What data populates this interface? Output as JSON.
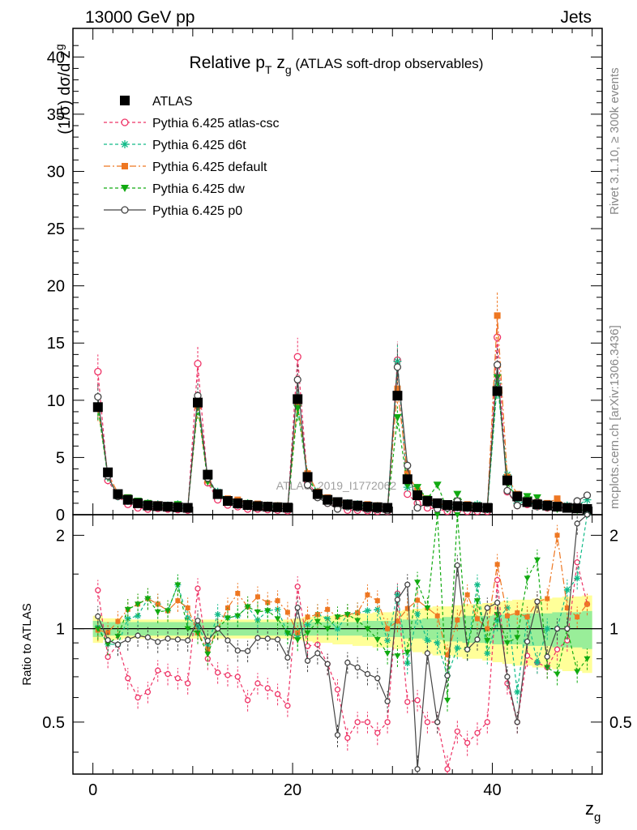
{
  "header": {
    "left": "13000 GeV pp",
    "right": "Jets",
    "title_main": "Relative p",
    "title_sub_T": "T",
    "title_z": " z",
    "title_sub_g": "g",
    "title_rest": " (ATLAS soft-drop observables)",
    "watermark": "ATLAS_2019_I1772062",
    "side_top": "Rivet 3.1.10, ≥ 300k events",
    "side_bottom": "mcplots.cern.ch [arXiv:1306.3436]"
  },
  "chart_data": {
    "type": "scatter",
    "xlabel": "z",
    "xlabel_sub": "g",
    "ylabel": "(1/σ) dσ/d z",
    "ylabel_sub": "g",
    "ratio_ylabel": "Ratio to ATLAS",
    "xlim": [
      -2,
      51
    ],
    "ylim": [
      0,
      42.5
    ],
    "ratio_ylim": [
      0.34,
      2.33
    ],
    "x_ticks": [
      0,
      20,
      40
    ],
    "y_ticks": [
      0,
      5,
      10,
      15,
      20,
      25,
      30,
      35,
      40
    ],
    "ratio_ticks": [
      0.5,
      1,
      2
    ],
    "x": [
      0.5,
      1.5,
      2.5,
      3.5,
      4.5,
      5.5,
      6.5,
      7.5,
      8.5,
      9.5,
      10.5,
      11.5,
      12.5,
      13.5,
      14.5,
      15.5,
      16.5,
      17.5,
      18.5,
      19.5,
      20.5,
      21.5,
      22.5,
      23.5,
      24.5,
      25.5,
      26.5,
      27.5,
      28.5,
      29.5,
      30.5,
      31.5,
      32.5,
      33.5,
      34.5,
      35.5,
      36.5,
      37.5,
      38.5,
      39.5,
      40.5,
      41.5,
      42.5,
      43.5,
      44.5,
      45.5,
      46.5,
      47.5,
      48.5,
      49.5
    ],
    "series": [
      {
        "name": "ATLAS",
        "color": "#000000",
        "marker": "square",
        "line": "none",
        "values": [
          9.4,
          3.7,
          1.8,
          1.3,
          1.0,
          0.8,
          0.75,
          0.7,
          0.65,
          0.6,
          9.8,
          3.5,
          1.8,
          1.2,
          1.0,
          0.85,
          0.75,
          0.7,
          0.65,
          0.62,
          10.1,
          3.3,
          1.8,
          1.3,
          1.1,
          0.9,
          0.8,
          0.7,
          0.65,
          0.6,
          10.4,
          3.1,
          1.7,
          1.2,
          1.0,
          0.85,
          0.75,
          0.7,
          0.65,
          0.6,
          10.8,
          3.0,
          1.6,
          1.1,
          0.9,
          0.8,
          0.7,
          0.6,
          0.55,
          0.5
        ]
      },
      {
        "name": "Pythia 6.425 atlas-csc",
        "color": "#ee3366",
        "marker": "circle-open",
        "line": "dashed",
        "values": [
          12.5,
          3.0,
          1.6,
          0.9,
          0.6,
          0.5,
          0.55,
          0.5,
          0.45,
          0.4,
          13.2,
          2.8,
          1.3,
          0.85,
          0.7,
          0.5,
          0.5,
          0.45,
          0.4,
          0.35,
          13.8,
          2.9,
          1.6,
          1.0,
          0.7,
          0.4,
          0.4,
          0.35,
          0.3,
          0.3,
          13.5,
          1.8,
          1.0,
          0.6,
          0.5,
          0.3,
          0.35,
          0.3,
          0.3,
          0.3,
          15.5,
          2.0,
          0.8,
          0.9,
          0.7,
          0.6,
          0.6,
          0.55,
          0.9,
          0.6
        ]
      },
      {
        "name": "Pythia 6.425 d6t",
        "color": "#11bb88",
        "marker": "star",
        "line": "dashed",
        "values": [
          9.5,
          3.3,
          1.6,
          1.4,
          1.1,
          1.0,
          0.9,
          0.8,
          0.9,
          0.65,
          10.0,
          3.1,
          2.0,
          1.3,
          1.1,
          1.0,
          0.8,
          0.8,
          0.75,
          0.6,
          9.6,
          3.4,
          2.0,
          1.4,
          1.1,
          1.0,
          0.9,
          0.8,
          0.75,
          0.55,
          13.4,
          2.4,
          1.9,
          1.1,
          0.9,
          0.6,
          0.65,
          0.6,
          0.9,
          0.5,
          11.5,
          3.5,
          1.0,
          1.2,
          0.7,
          0.8,
          0.7,
          0.8,
          0.8,
          1.3
        ]
      },
      {
        "name": "Pythia 6.425 default",
        "color": "#ee7722",
        "marker": "square-filled",
        "line": "dashdot",
        "values": [
          9.3,
          3.6,
          1.9,
          1.5,
          1.2,
          1.0,
          0.9,
          0.8,
          0.8,
          0.7,
          9.5,
          3.0,
          1.8,
          1.4,
          1.3,
          1.0,
          0.95,
          0.85,
          0.8,
          0.7,
          9.8,
          3.6,
          2.0,
          1.5,
          1.2,
          1.0,
          0.9,
          0.9,
          0.8,
          0.6,
          11.0,
          3.6,
          2.1,
          1.4,
          1.1,
          0.7,
          0.8,
          0.9,
          0.7,
          0.6,
          17.4,
          3.3,
          1.8,
          1.2,
          1.1,
          1.0,
          1.4,
          0.7,
          0.6,
          0.6
        ]
      },
      {
        "name": "Pythia 6.425 dw",
        "color": "#11aa11",
        "marker": "triangle-down",
        "line": "dashed",
        "values": [
          9.4,
          3.3,
          1.7,
          1.5,
          1.2,
          1.0,
          0.85,
          0.8,
          0.9,
          0.6,
          9.5,
          2.9,
          1.8,
          1.3,
          1.1,
          1.0,
          0.85,
          0.8,
          0.7,
          0.6,
          9.3,
          3.2,
          1.9,
          1.3,
          1.2,
          1.0,
          0.85,
          0.7,
          0.6,
          0.5,
          8.5,
          2.6,
          2.4,
          1.4,
          2.6,
          0.5,
          1.8,
          0.6,
          0.8,
          0.55,
          12.0,
          2.7,
          1.5,
          1.6,
          1.5,
          0.6,
          0.5,
          0.6,
          0.4,
          0.4
        ]
      },
      {
        "name": "Pythia 6.425 p0",
        "color": "#444444",
        "marker": "circle-open",
        "line": "solid",
        "values": [
          10.3,
          3.4,
          1.6,
          1.2,
          0.95,
          0.75,
          0.68,
          0.65,
          0.6,
          0.55,
          10.4,
          3.2,
          1.8,
          1.1,
          0.85,
          0.72,
          0.7,
          0.65,
          0.6,
          0.5,
          11.8,
          2.6,
          1.5,
          1.0,
          0.5,
          0.7,
          0.6,
          0.5,
          0.45,
          0.35,
          12.9,
          4.3,
          0.6,
          1.0,
          0.5,
          0.6,
          1.2,
          0.6,
          0.6,
          0.7,
          13.1,
          2.1,
          0.8,
          1.0,
          1.1,
          0.65,
          0.7,
          0.6,
          1.2,
          1.7
        ]
      }
    ],
    "ratio_band_inner": [
      0.06,
      0.05,
      0.05,
      0.05,
      0.05,
      0.05,
      0.05,
      0.05,
      0.05,
      0.05,
      0.05,
      0.05,
      0.05,
      0.05,
      0.05,
      0.05,
      0.05,
      0.05,
      0.05,
      0.05,
      0.05,
      0.05,
      0.05,
      0.05,
      0.05,
      0.05,
      0.05,
      0.06,
      0.06,
      0.06,
      0.06,
      0.07,
      0.07,
      0.08,
      0.08,
      0.09,
      0.09,
      0.1,
      0.1,
      0.1,
      0.11,
      0.11,
      0.11,
      0.12,
      0.12,
      0.12,
      0.13,
      0.13,
      0.13,
      0.14
    ],
    "ratio_band_outer": [
      0.1,
      0.08,
      0.08,
      0.07,
      0.07,
      0.07,
      0.07,
      0.07,
      0.07,
      0.07,
      0.07,
      0.07,
      0.07,
      0.07,
      0.07,
      0.07,
      0.07,
      0.07,
      0.07,
      0.07,
      0.08,
      0.09,
      0.1,
      0.1,
      0.11,
      0.11,
      0.12,
      0.12,
      0.13,
      0.13,
      0.14,
      0.15,
      0.16,
      0.17,
      0.18,
      0.18,
      0.19,
      0.2,
      0.2,
      0.21,
      0.22,
      0.23,
      0.24,
      0.24,
      0.25,
      0.25,
      0.26,
      0.27,
      0.27,
      0.28
    ],
    "legend_placement": "top-left",
    "grid": false
  }
}
